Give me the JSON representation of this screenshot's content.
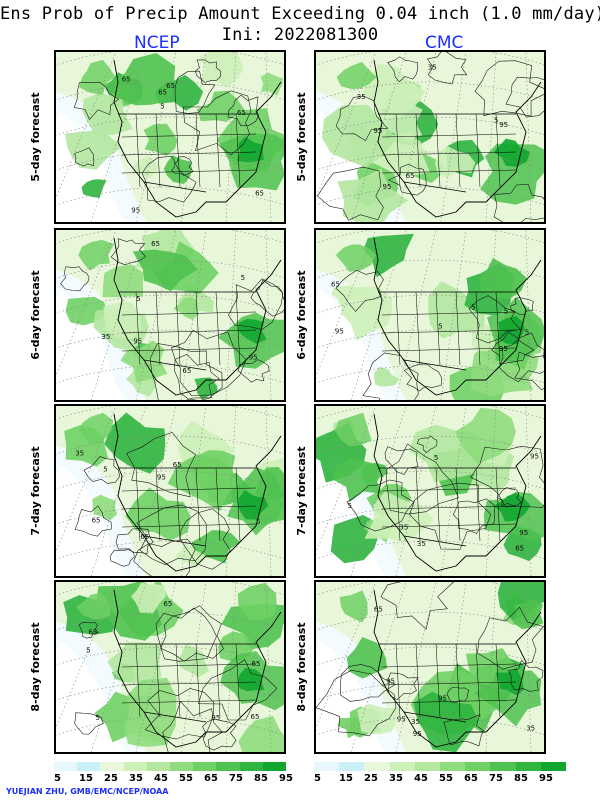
{
  "title": {
    "line1": "Ens Prob of Precip Amount Exceeding 0.04 inch (1.0 mm/day)",
    "line2": "Ini: 2022081300"
  },
  "columns": {
    "left": "NCEP",
    "right": "CMC"
  },
  "rows": [
    {
      "label": "5-day forecast"
    },
    {
      "label": "6-day forecast"
    },
    {
      "label": "7-day forecast"
    },
    {
      "label": "8-day forecast"
    }
  ],
  "contour_labels": [
    "5",
    "35",
    "65",
    "95"
  ],
  "colorbar": {
    "ticks": [
      "5",
      "15",
      "25",
      "35",
      "45",
      "55",
      "65",
      "75",
      "85",
      "95"
    ],
    "colors": [
      "#e8f8fc",
      "#c9f0f7",
      "#e8f7d9",
      "#cdefb8",
      "#b3e7a0",
      "#8fdb7d",
      "#6fd064",
      "#4fc24f",
      "#2fb43f",
      "#10a630"
    ]
  },
  "credit": "YUEJIAN ZHU, GMB/EMC/NCEP/NOAA"
}
